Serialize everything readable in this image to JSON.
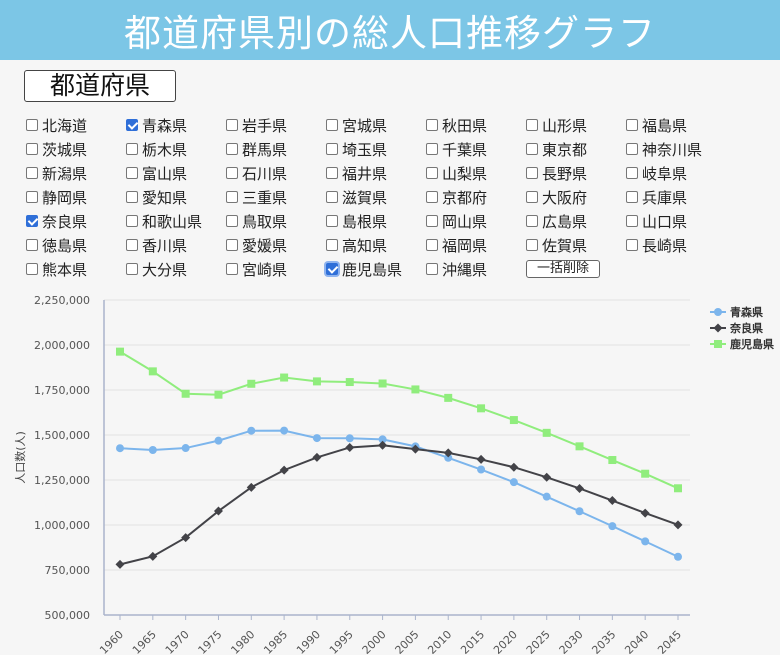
{
  "header": {
    "title": "都道府県別の総人口推移グラフ"
  },
  "prefecture_section": {
    "title": "都道府県"
  },
  "prefectures": [
    {
      "name": "北海道",
      "checked": false
    },
    {
      "name": "青森県",
      "checked": true
    },
    {
      "name": "岩手県",
      "checked": false
    },
    {
      "name": "宮城県",
      "checked": false
    },
    {
      "name": "秋田県",
      "checked": false
    },
    {
      "name": "山形県",
      "checked": false
    },
    {
      "name": "福島県",
      "checked": false
    },
    {
      "name": "茨城県",
      "checked": false
    },
    {
      "name": "栃木県",
      "checked": false
    },
    {
      "name": "群馬県",
      "checked": false
    },
    {
      "name": "埼玉県",
      "checked": false
    },
    {
      "name": "千葉県",
      "checked": false
    },
    {
      "name": "東京都",
      "checked": false
    },
    {
      "name": "神奈川県",
      "checked": false
    },
    {
      "name": "新潟県",
      "checked": false
    },
    {
      "name": "富山県",
      "checked": false
    },
    {
      "name": "石川県",
      "checked": false
    },
    {
      "name": "福井県",
      "checked": false
    },
    {
      "name": "山梨県",
      "checked": false
    },
    {
      "name": "長野県",
      "checked": false
    },
    {
      "name": "岐阜県",
      "checked": false
    },
    {
      "name": "静岡県",
      "checked": false
    },
    {
      "name": "愛知県",
      "checked": false
    },
    {
      "name": "三重県",
      "checked": false
    },
    {
      "name": "滋賀県",
      "checked": false
    },
    {
      "name": "京都府",
      "checked": false
    },
    {
      "name": "大阪府",
      "checked": false
    },
    {
      "name": "兵庫県",
      "checked": false
    },
    {
      "name": "奈良県",
      "checked": true
    },
    {
      "name": "和歌山県",
      "checked": false
    },
    {
      "name": "鳥取県",
      "checked": false
    },
    {
      "name": "島根県",
      "checked": false
    },
    {
      "name": "岡山県",
      "checked": false
    },
    {
      "name": "広島県",
      "checked": false
    },
    {
      "name": "山口県",
      "checked": false
    },
    {
      "name": "徳島県",
      "checked": false
    },
    {
      "name": "香川県",
      "checked": false
    },
    {
      "name": "愛媛県",
      "checked": false
    },
    {
      "name": "高知県",
      "checked": false
    },
    {
      "name": "福岡県",
      "checked": false
    },
    {
      "name": "佐賀県",
      "checked": false
    },
    {
      "name": "長崎県",
      "checked": false
    },
    {
      "name": "熊本県",
      "checked": false
    },
    {
      "name": "大分県",
      "checked": false
    },
    {
      "name": "宮崎県",
      "checked": false
    },
    {
      "name": "鹿児島県",
      "checked": true,
      "focused": true
    },
    {
      "name": "沖縄県",
      "checked": false
    }
  ],
  "clear_button": {
    "label": "一括削除"
  },
  "chart_data": {
    "type": "line",
    "ylabel": "人口数(人)",
    "xlabel": "",
    "ylim": [
      500000,
      2250000
    ],
    "y_ticks": [
      500000,
      750000,
      1000000,
      1250000,
      1500000,
      1750000,
      2000000,
      2250000
    ],
    "x": [
      1960,
      1965,
      1970,
      1975,
      1980,
      1985,
      1990,
      1995,
      2000,
      2005,
      2010,
      2015,
      2020,
      2025,
      2030,
      2035,
      2040,
      2045
    ],
    "legend_position": "top-right",
    "grid": true,
    "series": [
      {
        "name": "青森県",
        "color": "#7cb5ec",
        "marker": "circle",
        "values": [
          1426606,
          1416591,
          1427520,
          1468646,
          1523907,
          1524448,
          1482873,
          1481663,
          1475728,
          1436657,
          1373339,
          1308265,
          1237984,
          1157332,
          1076393,
          993737,
          908974,
          823610
        ]
      },
      {
        "name": "奈良県",
        "color": "#434348",
        "marker": "diamond",
        "values": [
          781058,
          825965,
          930160,
          1077491,
          1209365,
          1304866,
          1375481,
          1430862,
          1442795,
          1421310,
          1400728,
          1364316,
          1321000,
          1265000,
          1203000,
          1136000,
          1066000,
          1001000
        ]
      },
      {
        "name": "鹿児島県",
        "color": "#90ed7d",
        "marker": "square",
        "values": [
          1963104,
          1853541,
          1729150,
          1723902,
          1784623,
          1819270,
          1797824,
          1794224,
          1786194,
          1753179,
          1706242,
          1648177,
          1583000,
          1512000,
          1437000,
          1361000,
          1285000,
          1204000
        ]
      }
    ]
  }
}
